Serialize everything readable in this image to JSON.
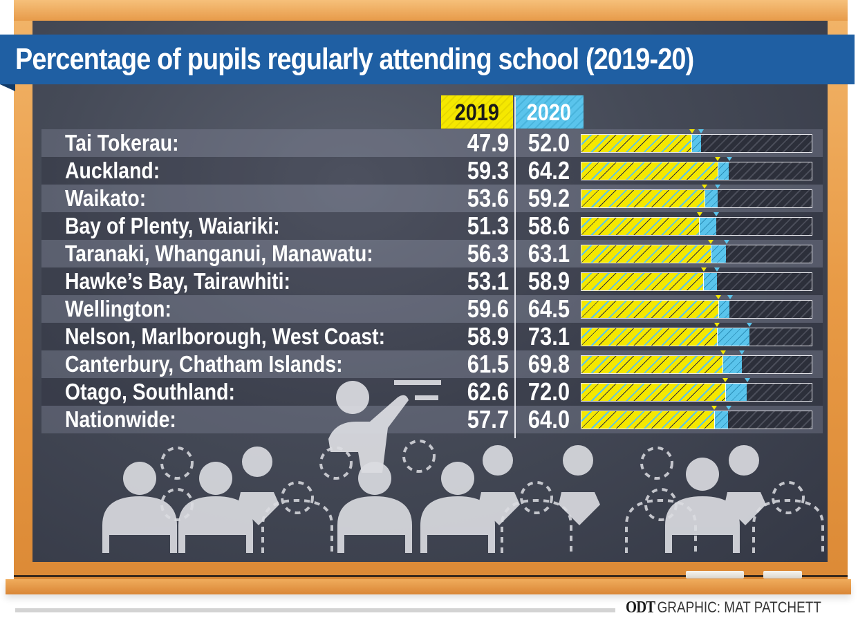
{
  "title": "Percentage of pupils regularly attending school (2019-20)",
  "credit": {
    "brand": "ODT",
    "text": "GRAPHIC: MAT PATCHETT"
  },
  "colors": {
    "y2019": "#f5e800",
    "y2020": "#5ac4ec",
    "title_band": "#1f5fa3",
    "board": "#454a57",
    "frame": "#e89a45"
  },
  "chart_data": {
    "type": "bar",
    "orientation": "horizontal",
    "title": "Percentage of pupils regularly attending school (2019-20)",
    "xlabel": "",
    "ylabel": "",
    "xlim": [
      0,
      100
    ],
    "grid": false,
    "legend": "top",
    "categories": [
      "Tai Tokerau:",
      "Auckland:",
      "Waikato:",
      "Bay of Plenty, Waiariki:",
      "Taranaki, Whanganui, Manawatu:",
      "Hawke’s Bay, Tairawhiti:",
      "Wellington:",
      "Nelson, Marlborough, West Coast:",
      "Canterbury, Chatham Islands:",
      "Otago, Southland:",
      "Nationwide:"
    ],
    "series": [
      {
        "name": "2019",
        "values": [
          47.9,
          59.3,
          53.6,
          51.3,
          56.3,
          53.1,
          59.6,
          58.9,
          61.5,
          62.6,
          57.7
        ],
        "labels": [
          "47.9",
          "59.3",
          "53.6",
          "51.3",
          "56.3",
          "53.1",
          "59.6",
          "58.9",
          "61.5",
          "62.6",
          "57.7"
        ]
      },
      {
        "name": "2020",
        "values": [
          52.0,
          64.2,
          59.2,
          58.6,
          63.1,
          58.9,
          64.5,
          73.1,
          69.8,
          72.0,
          64.0
        ],
        "labels": [
          "52.0",
          "64.2",
          "59.2",
          "58.6",
          "63.1",
          "58.9",
          "64.5",
          "73.1",
          "69.8",
          "72.0",
          "64.0"
        ]
      }
    ]
  }
}
